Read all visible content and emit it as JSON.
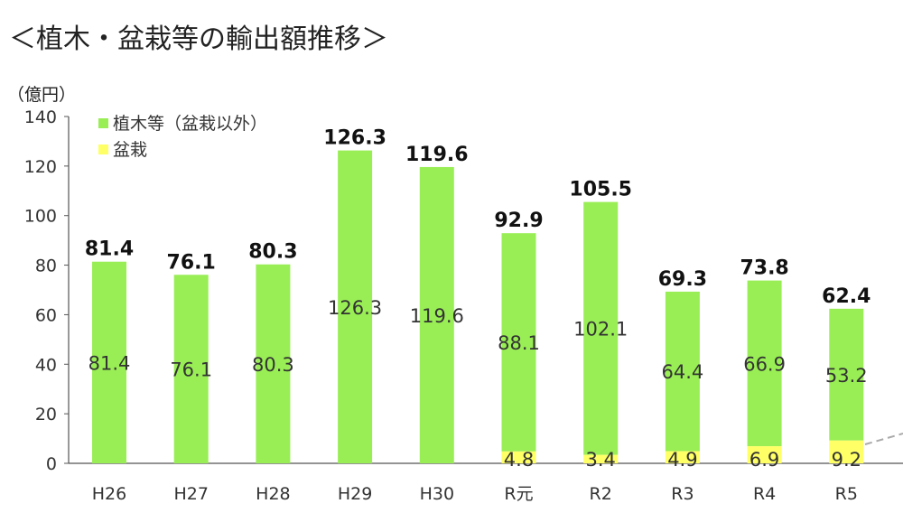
{
  "title": "＜植木・盆栽等の輸出額推移＞",
  "chart_data": {
    "type": "bar",
    "stacked": true,
    "categories": [
      "H26",
      "H27",
      "H28",
      "H29",
      "H30",
      "R元",
      "R2",
      "R3",
      "R4",
      "R5"
    ],
    "series": [
      {
        "name": "盆栽",
        "color": "#ffff66",
        "values": [
          null,
          null,
          null,
          null,
          null,
          4.8,
          3.4,
          4.9,
          6.9,
          9.2
        ],
        "labels": [
          "",
          "",
          "",
          "",
          "",
          "4.8",
          "3.4",
          "4.9",
          "6.9",
          "9.2"
        ]
      },
      {
        "name": "植木等（盆栽以外）",
        "color": "#99ee55",
        "values": [
          81.4,
          76.1,
          80.3,
          126.3,
          119.6,
          88.1,
          102.1,
          64.4,
          66.9,
          53.2
        ],
        "labels": [
          "81.4",
          "76.1",
          "80.3",
          "126.3",
          "119.6",
          "88.1",
          "102.1",
          "64.4",
          "66.9",
          "53.2"
        ]
      }
    ],
    "totals": [
      "81.4",
      "76.1",
      "80.3",
      "126.3",
      "119.6",
      "92.9",
      "105.5",
      "69.3",
      "73.8",
      "62.4"
    ],
    "ylabel": "（億円）",
    "ylim": [
      0,
      140
    ],
    "yticks": [
      "0",
      "20",
      "40",
      "60",
      "80",
      "100",
      "120",
      "140"
    ],
    "grid": false,
    "legend_position": "top-left",
    "legend_order": [
      "植木等（盆栽以外）",
      "盆栽"
    ]
  }
}
